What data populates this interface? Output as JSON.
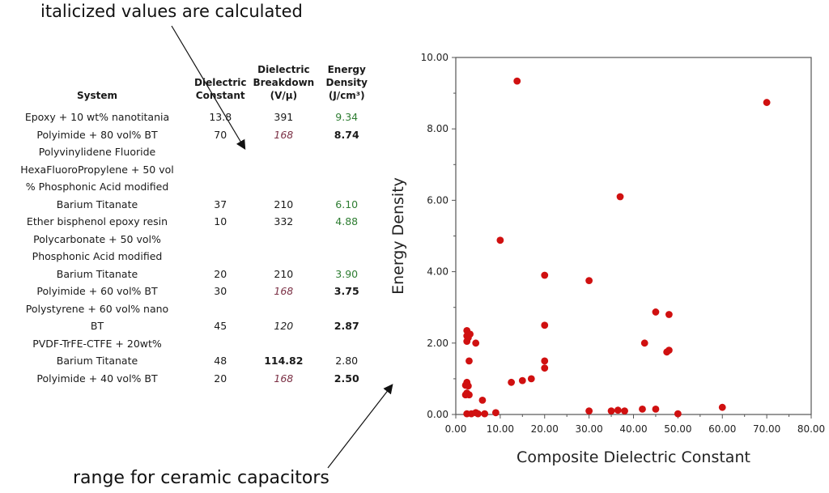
{
  "annotations": {
    "top": "italicized values are calculated",
    "bottom": "range for ceramic capacitors"
  },
  "table": {
    "headers": [
      "System",
      "Dielectric Constant",
      "Dielectric Breakdown (V/μ)",
      "Energy Density (J/cm³)"
    ],
    "header_lines": {
      "system": [
        "System"
      ],
      "constant": [
        "Dielectric",
        "Constant"
      ],
      "breakdown": [
        "Dielectric",
        "Breakdown",
        "(V/μ)"
      ],
      "energy": [
        "Energy",
        "Density",
        "(J/cm³)"
      ]
    },
    "rows": [
      {
        "system_lines": [
          "Epoxy + 10 wt% nanotitania"
        ],
        "constant": "13.8",
        "breakdown": "391",
        "breakdown_style": "plain",
        "energy": "9.34",
        "energy_style": "green"
      },
      {
        "system_lines": [
          "Polyimide  + 80 vol% BT"
        ],
        "constant": "70",
        "breakdown": "168",
        "breakdown_style": "calc",
        "energy": "8.74",
        "energy_style": "bold"
      },
      {
        "system_lines": [
          "Polyvinylidene Fluoride",
          "HexaFluoroPropylene + 50 vol",
          "% Phosphonic Acid modified",
          "Barium Titanate"
        ],
        "constant": "37",
        "breakdown": "210",
        "breakdown_style": "plain",
        "energy": "6.10",
        "energy_style": "green"
      },
      {
        "system_lines": [
          "Ether bisphenol epoxy resin"
        ],
        "constant": "10",
        "breakdown": "332",
        "breakdown_style": "plain",
        "energy": "4.88",
        "energy_style": "green"
      },
      {
        "system_lines": [
          "Polycarbonate + 50 vol%",
          "Phosphonic Acid modified",
          "Barium Titanate"
        ],
        "constant": "20",
        "breakdown": "210",
        "breakdown_style": "plain",
        "energy": "3.90",
        "energy_style": "green"
      },
      {
        "system_lines": [
          "Polyimide  + 60 vol% BT"
        ],
        "constant": "30",
        "breakdown": "168",
        "breakdown_style": "calc",
        "energy": "3.75",
        "energy_style": "bold"
      },
      {
        "system_lines": [
          "Polystyrene + 60 vol%  nano",
          "BT"
        ],
        "constant": "45",
        "breakdown": "120",
        "breakdown_style": "calc-dark",
        "energy": "2.87",
        "energy_style": "bold"
      },
      {
        "system_lines": [
          "PVDF-TrFE-CTFE + 20wt%",
          "Barium Titanate"
        ],
        "constant": "48",
        "breakdown": "114.82",
        "breakdown_style": "bold",
        "energy": "2.80",
        "energy_style": "plain"
      },
      {
        "system_lines": [
          "Polyimide  + 40 vol% BT"
        ],
        "constant": "20",
        "breakdown": "168",
        "breakdown_style": "calc",
        "energy": "2.50",
        "energy_style": "bold"
      }
    ]
  },
  "chart_data": {
    "type": "scatter",
    "title": "",
    "xlabel": "Composite Dielectric Constant",
    "ylabel": "Energy Density",
    "xlim": [
      0,
      80
    ],
    "ylim": [
      0,
      10
    ],
    "xticks": [
      "0.00",
      "10.00",
      "20.00",
      "30.00",
      "40.00",
      "50.00",
      "60.00",
      "70.00",
      "80.00"
    ],
    "yticks": [
      "0.00",
      "2.00",
      "4.00",
      "6.00",
      "8.00",
      "10.00"
    ],
    "marker_color": "#d01010",
    "points": [
      [
        13.8,
        9.34
      ],
      [
        70,
        8.74
      ],
      [
        37,
        6.1
      ],
      [
        10,
        4.88
      ],
      [
        20,
        3.9
      ],
      [
        30,
        3.75
      ],
      [
        45,
        2.87
      ],
      [
        48,
        2.8
      ],
      [
        20,
        2.5
      ],
      [
        42.5,
        2.0
      ],
      [
        48,
        1.8
      ],
      [
        47.5,
        1.75
      ],
      [
        20,
        1.5
      ],
      [
        20,
        1.3
      ],
      [
        17,
        1.0
      ],
      [
        15,
        0.95
      ],
      [
        12.5,
        0.9
      ],
      [
        2.5,
        2.35
      ],
      [
        2.5,
        2.2
      ],
      [
        3.2,
        2.25
      ],
      [
        2.8,
        2.15
      ],
      [
        2.5,
        2.05
      ],
      [
        4.5,
        2.0
      ],
      [
        3.0,
        1.5
      ],
      [
        2.5,
        0.9
      ],
      [
        2.2,
        0.82
      ],
      [
        2.8,
        0.8
      ],
      [
        2.5,
        0.6
      ],
      [
        2.2,
        0.55
      ],
      [
        3.0,
        0.55
      ],
      [
        6.0,
        0.4
      ],
      [
        2.5,
        0.02
      ],
      [
        3.5,
        0.02
      ],
      [
        4.5,
        0.05
      ],
      [
        5.0,
        0.02
      ],
      [
        6.5,
        0.02
      ],
      [
        9.0,
        0.05
      ],
      [
        30,
        0.1
      ],
      [
        35,
        0.1
      ],
      [
        36.5,
        0.12
      ],
      [
        38,
        0.1
      ],
      [
        42,
        0.15
      ],
      [
        45,
        0.15
      ],
      [
        50,
        0.02
      ],
      [
        60,
        0.2
      ]
    ]
  }
}
